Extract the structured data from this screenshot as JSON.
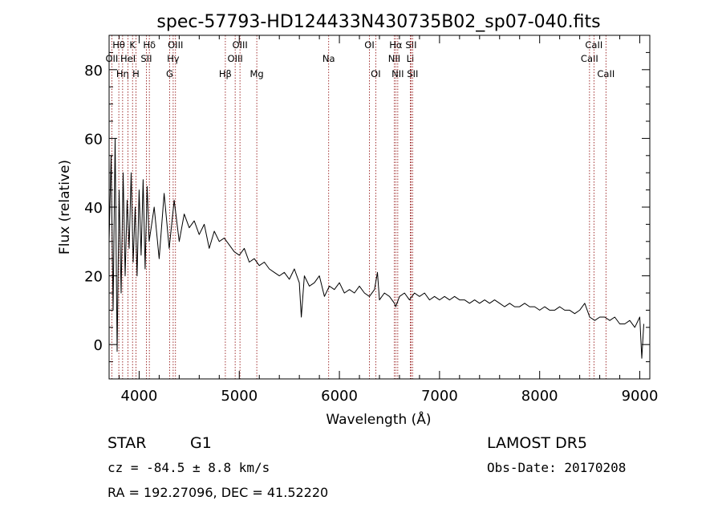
{
  "chart_data": {
    "type": "line",
    "title": "spec-57793-HD124433N430735B02_sp07-040.fits",
    "xlabel": "Wavelength (Å)",
    "ylabel": "Flux (relative)",
    "xlim": [
      3700,
      9100
    ],
    "ylim": [
      -10,
      90
    ],
    "xticks": [
      "4000",
      "5000",
      "6000",
      "7000",
      "8000",
      "9000"
    ],
    "yticks": [
      "0",
      "20",
      "40",
      "60",
      "80"
    ],
    "line_color": "#000000",
    "marker_color": "#8b0000",
    "series": [
      {
        "x": [
          3700,
          3720,
          3740,
          3760,
          3780,
          3800,
          3820,
          3840,
          3860,
          3880,
          3900,
          3920,
          3940,
          3960,
          3980,
          4000,
          4020,
          4040,
          4060,
          4080,
          4100,
          4150,
          4200,
          4250,
          4300,
          4350,
          4400,
          4450,
          4500,
          4550,
          4600,
          4650,
          4700,
          4750,
          4800,
          4850,
          4900,
          4950,
          5000,
          5050,
          5100,
          5150,
          5200,
          5250,
          5300,
          5350,
          5400,
          5450,
          5500,
          5550,
          5600,
          5620,
          5650,
          5700,
          5750,
          5800,
          5850,
          5900,
          5950,
          6000,
          6050,
          6100,
          6150,
          6200,
          6250,
          6300,
          6350,
          6380,
          6400,
          6450,
          6500,
          6550,
          6563,
          6600,
          6650,
          6700,
          6750,
          6800,
          6850,
          6900,
          6950,
          7000,
          7050,
          7100,
          7150,
          7200,
          7250,
          7300,
          7350,
          7400,
          7450,
          7500,
          7550,
          7600,
          7650,
          7700,
          7750,
          7800,
          7850,
          7900,
          7950,
          8000,
          8050,
          8100,
          8150,
          8200,
          8250,
          8300,
          8350,
          8400,
          8450,
          8500,
          8550,
          8600,
          8650,
          8700,
          8750,
          8800,
          8850,
          8900,
          8950,
          9000,
          9020,
          9040
        ],
        "y": [
          30,
          55,
          10,
          60,
          -2,
          45,
          15,
          50,
          20,
          42,
          28,
          50,
          24,
          40,
          20,
          45,
          26,
          48,
          22,
          46,
          30,
          40,
          25,
          44,
          28,
          42,
          30,
          38,
          34,
          36,
          32,
          35,
          28,
          33,
          30,
          31,
          29,
          27,
          26,
          28,
          24,
          25,
          23,
          24,
          22,
          21,
          20,
          21,
          19,
          22,
          18,
          8,
          20,
          17,
          18,
          20,
          14,
          17,
          16,
          18,
          15,
          16,
          15,
          17,
          15,
          14,
          16,
          21,
          13,
          15,
          14,
          12,
          11,
          14,
          15,
          13,
          15,
          14,
          15,
          13,
          14,
          13,
          14,
          13,
          14,
          13,
          13,
          12,
          13,
          12,
          13,
          12,
          13,
          12,
          11,
          12,
          11,
          11,
          12,
          11,
          11,
          10,
          11,
          10,
          10,
          11,
          10,
          10,
          9,
          10,
          12,
          8,
          7,
          8,
          8,
          7,
          8,
          6,
          6,
          7,
          5,
          8,
          -4,
          6
        ]
      }
    ],
    "lines": [
      {
        "name": "OII",
        "x": 3727,
        "tier": 1
      },
      {
        "name": "Hθ",
        "x": 3797,
        "tier": 0
      },
      {
        "name": "Hη",
        "x": 3835,
        "tier": 2
      },
      {
        "name": "HeI",
        "x": 3889,
        "tier": 1
      },
      {
        "name": "K",
        "x": 3934,
        "tier": 0
      },
      {
        "name": "H",
        "x": 3968,
        "tier": 2
      },
      {
        "name": "SII",
        "x": 4072,
        "tier": 1
      },
      {
        "name": "Hδ",
        "x": 4102,
        "tier": 0
      },
      {
        "name": "Hγ",
        "x": 4340,
        "tier": 1
      },
      {
        "name": "G",
        "x": 4305,
        "tier": 2
      },
      {
        "name": "OIII",
        "x": 4363,
        "tier": 0
      },
      {
        "name": "Hβ",
        "x": 4861,
        "tier": 2
      },
      {
        "name": "OIII",
        "x": 4959,
        "tier": 1
      },
      {
        "name": "OIII",
        "x": 5007,
        "tier": 0
      },
      {
        "name": "Mg",
        "x": 5175,
        "tier": 2
      },
      {
        "name": "Na",
        "x": 5893,
        "tier": 1
      },
      {
        "name": "OI",
        "x": 6300,
        "tier": 0
      },
      {
        "name": "OI",
        "x": 6363,
        "tier": 2
      },
      {
        "name": "NII",
        "x": 6548,
        "tier": 1
      },
      {
        "name": "Hα",
        "x": 6563,
        "tier": 0
      },
      {
        "name": "NII",
        "x": 6583,
        "tier": 2
      },
      {
        "name": "Li",
        "x": 6708,
        "tier": 1
      },
      {
        "name": "SII",
        "x": 6716,
        "tier": 0
      },
      {
        "name": "SII",
        "x": 6731,
        "tier": 2
      },
      {
        "name": "CaII",
        "x": 8498,
        "tier": 1
      },
      {
        "name": "CaII",
        "x": 8542,
        "tier": 0
      },
      {
        "name": "CaII",
        "x": 8662,
        "tier": 2
      }
    ]
  },
  "info": {
    "class": "STAR",
    "subclass": "G1",
    "survey": "LAMOST DR5",
    "cz": "cz = -84.5 ± 8.8 km/s",
    "obs_date": "Obs-Date: 20170208",
    "coords": "RA = 192.27096, DEC =  41.52220"
  }
}
